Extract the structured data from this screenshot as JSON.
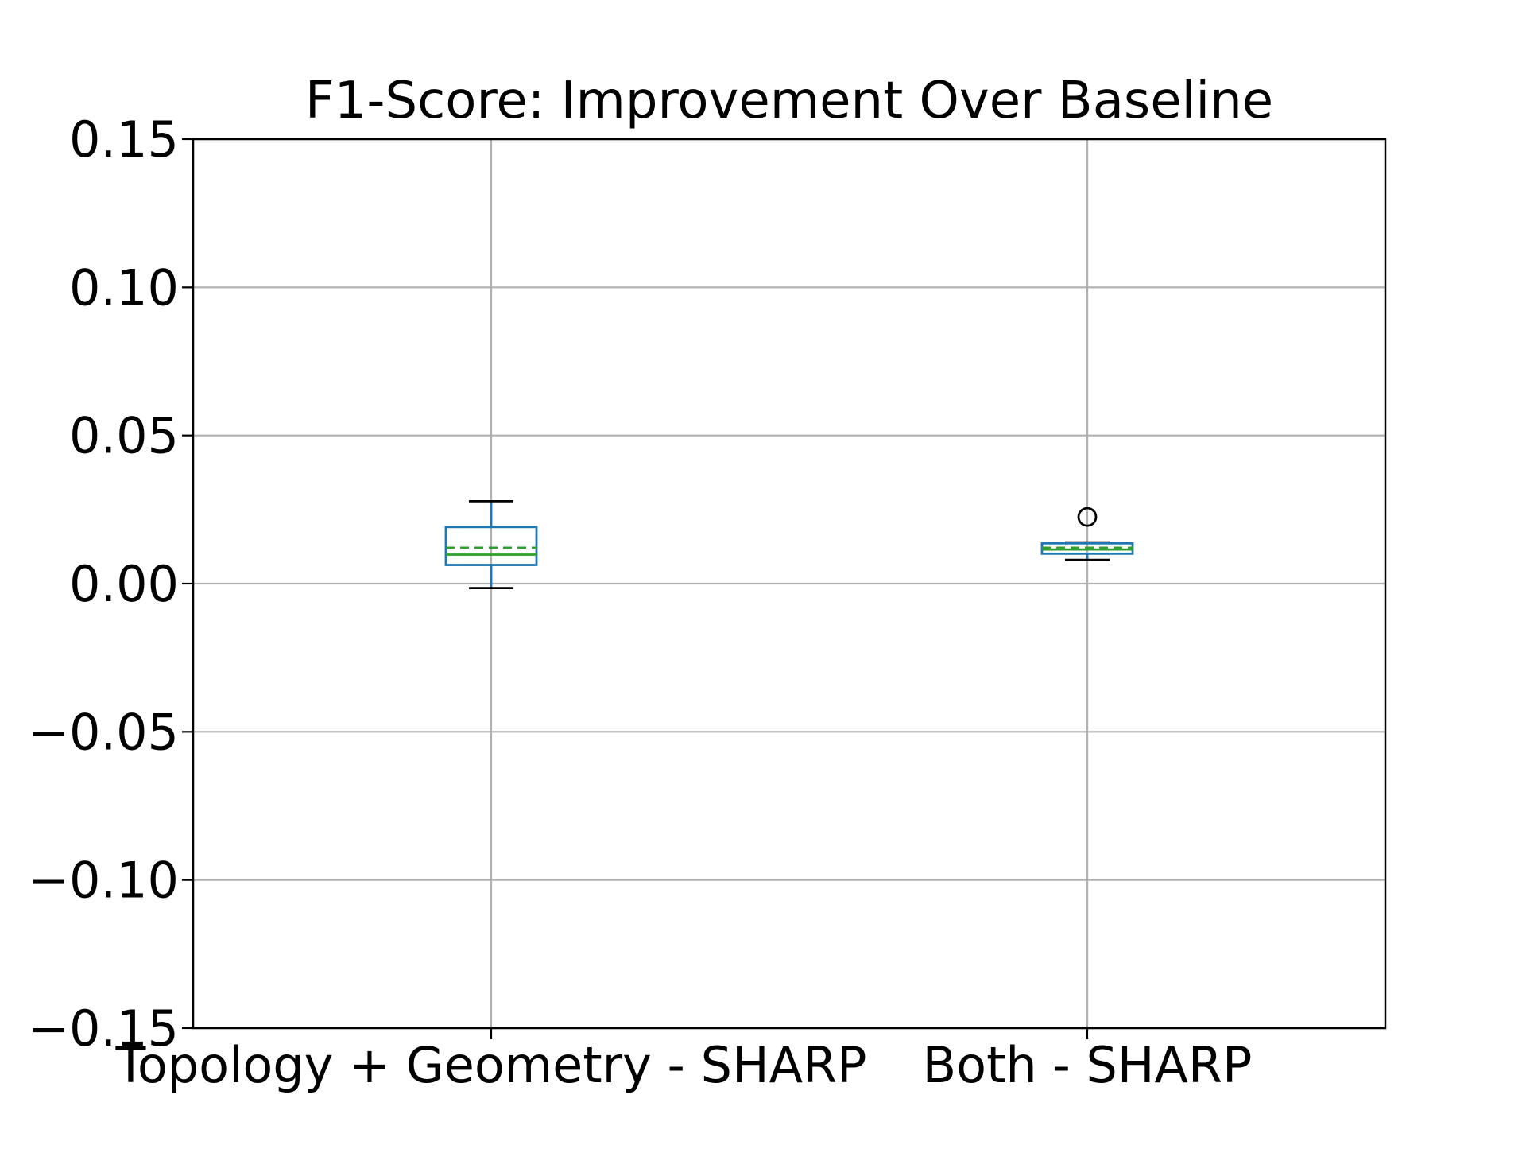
{
  "chart_data": {
    "type": "box",
    "title": "F1-Score: Improvement Over Baseline",
    "xlabel": "",
    "ylabel": "",
    "ylim": [
      -0.15,
      0.15
    ],
    "yticks": [
      -0.15,
      -0.1,
      -0.05,
      0.0,
      0.05,
      0.1,
      0.15
    ],
    "ytick_labels": [
      "−0.15",
      "−0.10",
      "−0.05",
      "0.00",
      "0.05",
      "0.10",
      "0.15"
    ],
    "grid": true,
    "categories": [
      "Topology + Geometry - SHARP",
      "Both - SHARP"
    ],
    "boxes": [
      {
        "label": "Topology + Geometry - SHARP",
        "whisker_low": -0.0015,
        "q1": 0.0063,
        "median": 0.0098,
        "mean": 0.0121,
        "q3": 0.0191,
        "whisker_high": 0.0278,
        "outliers": []
      },
      {
        "label": "Both - SHARP",
        "whisker_low": 0.008,
        "q1": 0.0101,
        "median": 0.0115,
        "mean": 0.0121,
        "q3": 0.0136,
        "whisker_high": 0.0139,
        "outliers": [
          0.0225
        ]
      }
    ],
    "colors": {
      "box": "#1f77b4",
      "median": "#2ca02c",
      "mean": "#2ca02c",
      "whisker": "#000000",
      "grid": "#b0b0b0",
      "axes": "#000000"
    }
  }
}
